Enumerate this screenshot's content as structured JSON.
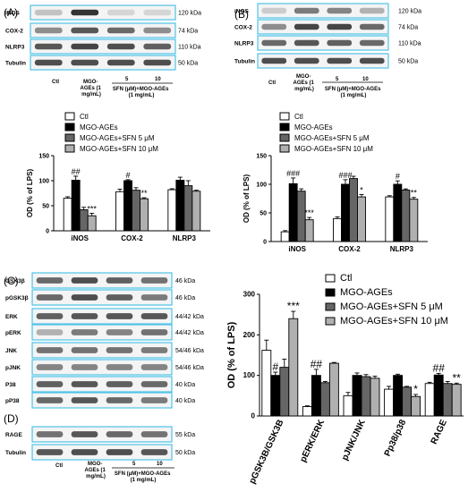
{
  "panels": {
    "A": {
      "label": "(A)",
      "blots": [
        {
          "name": "iNOS",
          "kda": "120 kDa"
        },
        {
          "name": "COX-2",
          "kda": "74 kDa"
        },
        {
          "name": "NLRP3",
          "kda": "110 kDa"
        },
        {
          "name": "Tubulin",
          "kda": "50 kDa"
        }
      ],
      "lanes": {
        "ctl": "Ctl",
        "mgo": "MGO-AGEs (1 mg/mL)",
        "d5": "5",
        "d10": "10",
        "sfn": "SFN (μM)+MGO-AGEs (1 mg/mL)"
      }
    },
    "B": {
      "label": "(B)",
      "blots": [
        {
          "name": "iNOS",
          "kda": "120 kDa"
        },
        {
          "name": "COX-2",
          "kda": "74 kDa"
        },
        {
          "name": "NLRP3",
          "kda": "110 kDa"
        },
        {
          "name": "Tubulin",
          "kda": "50 kDa"
        }
      ],
      "lanes": {
        "ctl": "Ctl",
        "mgo": "MGO-AGEs (1 mg/mL)",
        "d5": "5",
        "d10": "10",
        "sfn": "SFN (μM)+MGO-AGEs (1 mg/mL)"
      }
    },
    "C": {
      "label": "(C)",
      "blots": [
        {
          "name": "GSK3β",
          "kda": "46 kDa"
        },
        {
          "name": "pGSK3β",
          "kda": "46 kDa"
        },
        {
          "name": "ERK",
          "kda": "44/42 kDa"
        },
        {
          "name": "pERK",
          "kda": "44/42 kDa"
        },
        {
          "name": "JNK",
          "kda": "54/46 kDa"
        },
        {
          "name": "pJNK",
          "kda": "54/46 kDa"
        },
        {
          "name": "P38",
          "kda": "40 kDa"
        },
        {
          "name": "pP38",
          "kda": "40 kDa"
        }
      ]
    },
    "D": {
      "label": "(D)",
      "blots": [
        {
          "name": "RAGE",
          "kda": "55 kDa"
        },
        {
          "name": "Tubulin",
          "kda": "50 kDa"
        }
      ],
      "lanes": {
        "ctl": "Ctl",
        "mgo": "MGO-AGEs (1 mg/mL)",
        "d5": "5",
        "d10": "10",
        "sfn": "SFN (μM)+MGO-AGEs (1 mg/mL)"
      }
    }
  },
  "chart_data": [
    {
      "type": "bar",
      "panel": "A",
      "categories": [
        "iNOS",
        "COX-2",
        "NLRP3"
      ],
      "series": [
        {
          "name": "Ctl",
          "values": [
            65,
            78,
            82
          ]
        },
        {
          "name": "MGO-AGEs",
          "values": [
            101,
            100,
            101
          ]
        },
        {
          "name": "MGO-AGEs+SFN 5 μM",
          "values": [
            42,
            81,
            90
          ]
        },
        {
          "name": "MGO-AGEs+SFN 10 μM",
          "values": [
            30,
            64,
            79
          ]
        }
      ],
      "errors": [
        [
          3,
          5,
          2
        ],
        [
          8,
          2,
          6
        ],
        [
          5,
          5,
          10
        ],
        [
          5,
          2,
          2
        ]
      ],
      "annotations": [
        {
          "category": "iNOS",
          "series": 1,
          "text": "##"
        },
        {
          "category": "iNOS",
          "series": 3,
          "text": "***"
        },
        {
          "category": "COX-2",
          "series": 1,
          "text": "#"
        },
        {
          "category": "COX-2",
          "series": 3,
          "text": "**"
        }
      ],
      "ylabel": "OD (% of LPS)",
      "ylim": [
        0,
        150
      ],
      "yticks": [
        0,
        50,
        100,
        150
      ],
      "legend": "top"
    },
    {
      "type": "bar",
      "panel": "B",
      "categories": [
        "iNOS",
        "COX-2",
        "NLRP3"
      ],
      "series": [
        {
          "name": "Ctl",
          "values": [
            17,
            40,
            78
          ]
        },
        {
          "name": "MGO-AGEs",
          "values": [
            101,
            100,
            100
          ]
        },
        {
          "name": "MGO-AGEs+SFN 5 μM",
          "values": [
            88,
            110,
            90
          ]
        },
        {
          "name": "MGO-AGEs+SFN 10 μM",
          "values": [
            38,
            78,
            74
          ]
        }
      ],
      "errors": [
        [
          2,
          3,
          2
        ],
        [
          10,
          8,
          6
        ],
        [
          4,
          4,
          2
        ],
        [
          4,
          4,
          3
        ]
      ],
      "annotations": [
        {
          "category": "iNOS",
          "series": 1,
          "text": "###"
        },
        {
          "category": "iNOS",
          "series": 3,
          "text": "***"
        },
        {
          "category": "COX-2",
          "series": 1,
          "text": "###"
        },
        {
          "category": "COX-2",
          "series": 3,
          "text": "*"
        },
        {
          "category": "NLRP3",
          "series": 1,
          "text": "#"
        },
        {
          "category": "NLRP3",
          "series": 3,
          "text": "**"
        }
      ],
      "ylabel": "OD (% of LPS)",
      "ylim": [
        0,
        150
      ],
      "yticks": [
        0,
        50,
        100,
        150
      ],
      "legend": "top"
    },
    {
      "type": "bar",
      "panel": "C-D",
      "categories": [
        "pGSK3B/GSK3B",
        "pERK/ERK",
        "pJNK/JNK",
        "Pp38/p38",
        "RAGE"
      ],
      "series": [
        {
          "name": "Ctl",
          "values": [
            162,
            23,
            50,
            66,
            80
          ]
        },
        {
          "name": "MGO-AGEs",
          "values": [
            100,
            100,
            100,
            100,
            101
          ]
        },
        {
          "name": "MGO-AGEs+SFN 5 μM",
          "values": [
            120,
            82,
            97,
            71,
            80
          ]
        },
        {
          "name": "MGO-AGEs+SFN 10 μM",
          "values": [
            240,
            130,
            93,
            48,
            78
          ]
        }
      ],
      "errors": [
        [
          25,
          2,
          8,
          7,
          3
        ],
        [
          8,
          15,
          6,
          3,
          4
        ],
        [
          20,
          3,
          5,
          2,
          5
        ],
        [
          18,
          2,
          5,
          5,
          3
        ]
      ],
      "annotations": [
        {
          "category": "pGSK3B/GSK3B",
          "series": 1,
          "text": "#"
        },
        {
          "category": "pGSK3B/GSK3B",
          "series": 3,
          "text": "***"
        },
        {
          "category": "pERK/ERK",
          "series": 1,
          "text": "##"
        },
        {
          "category": "Pp38/p38",
          "series": 3,
          "text": "*"
        },
        {
          "category": "RAGE",
          "series": 1,
          "text": "##"
        },
        {
          "category": "RAGE",
          "series": 3,
          "text": "**"
        }
      ],
      "ylabel": "OD (% of LPS)",
      "ylim": [
        0,
        300
      ],
      "yticks": [
        0,
        100,
        200,
        300
      ],
      "legend": "top"
    }
  ]
}
